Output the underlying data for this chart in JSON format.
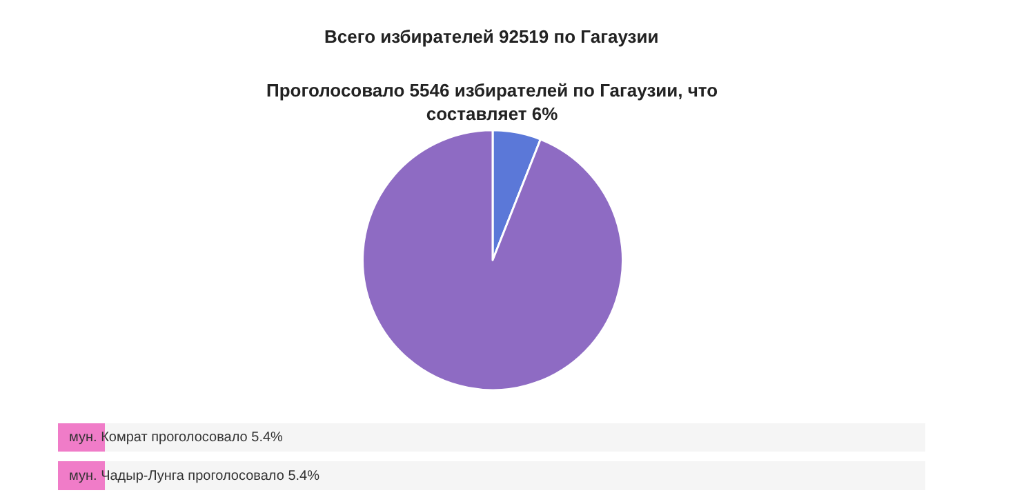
{
  "chart_data": [
    {
      "type": "pie",
      "title": "Всего избирателей 92519 по Гагаузии",
      "subtitle": "Проголосовало 5546 избирателей по Гагаузии, что составляет 6%",
      "categories": [
        null,
        null
      ],
      "values": [
        6,
        94
      ],
      "colors": [
        "#5b78d8",
        "#8e6bc3"
      ]
    },
    {
      "type": "bar",
      "orientation": "horizontal",
      "stacked": true,
      "categories": [
        null,
        null
      ],
      "xlim": [
        0,
        100
      ],
      "series": [
        {
          "color": "#f07cc8",
          "values": [
            5.4,
            5.4
          ],
          "value_labels": [
            "мун. Комрат проголосовало 5.4%",
            "мун. Чадыр-Лунга проголосовало 5.4%"
          ]
        },
        {
          "color": "#f5f5f5",
          "values": [
            94.6,
            94.6
          ]
        }
      ]
    }
  ]
}
